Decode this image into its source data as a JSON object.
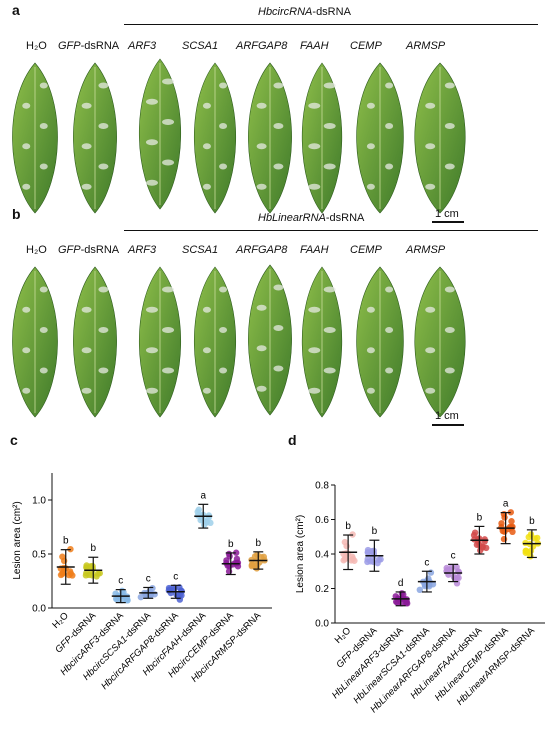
{
  "panel_a": {
    "letter": "a",
    "group_label_italic": "HbcircRNA",
    "group_label_suffix": "-dsRNA",
    "labels": [
      {
        "text": "H₂O",
        "italic": false
      },
      {
        "text": "GFP",
        "italic": true,
        "suffix": "-dsRNA"
      },
      {
        "text": "ARF3",
        "italic": true
      },
      {
        "text": "SCSA1",
        "italic": true
      },
      {
        "text": "ARFGAP8",
        "italic": true
      },
      {
        "text": "FAAH",
        "italic": true
      },
      {
        "text": "CEMP",
        "italic": true
      },
      {
        "text": "ARMSP",
        "italic": true
      }
    ],
    "scale_bar": "1 cm"
  },
  "panel_b": {
    "letter": "b",
    "group_label_italic": "HbLinearRNA",
    "group_label_suffix": "-dsRNA",
    "labels": [
      {
        "text": "H₂O",
        "italic": false
      },
      {
        "text": "GFP",
        "italic": true,
        "suffix": "-dsRNA"
      },
      {
        "text": "ARF3",
        "italic": true
      },
      {
        "text": "SCSA1",
        "italic": true
      },
      {
        "text": "ARFGAP8",
        "italic": true
      },
      {
        "text": "FAAH",
        "italic": true
      },
      {
        "text": "CEMP",
        "italic": true
      },
      {
        "text": "ARMSP",
        "italic": true
      }
    ],
    "scale_bar": "1 cm"
  },
  "colors": {
    "leaf_dark": "#3f7a2a",
    "leaf_light": "#8fbf4a",
    "lesion": "#e6e9e2"
  },
  "chart_data": [
    {
      "panel": "c",
      "type": "scatter",
      "ylabel": "Lesion area (cm²)",
      "ylim": [
        0,
        1.25
      ],
      "yticks": [
        0.0,
        0.5,
        1.0
      ],
      "categories": [
        "H₂O",
        "GFP-dsRNA",
        "HbcircARF3-dsRNA",
        "HbcircSCSA1-dsRNA",
        "HbcircARFGAP8-dsRNA",
        "HbcircFAAH-dsRNA",
        "HbcircCEMP-dsRNA",
        "HbcircARMSP-dsRNA"
      ],
      "italic_parts": [
        "",
        "GFP",
        "HbcircARF3",
        "HbcircSCSA1",
        "HbcircARFGAP8",
        "HbcircFAAH",
        "HbcircCEMP",
        "HbcircARMSP"
      ],
      "means": [
        0.38,
        0.35,
        0.11,
        0.14,
        0.15,
        0.85,
        0.41,
        0.44
      ],
      "sd": [
        0.16,
        0.12,
        0.06,
        0.05,
        0.06,
        0.11,
        0.1,
        0.08
      ],
      "letters": [
        "b",
        "b",
        "c",
        "c",
        "c",
        "a",
        "b",
        "b"
      ],
      "colors": [
        "#f07e1a",
        "#c8c81e",
        "#86b8e6",
        "#8aa6e0",
        "#4c62d2",
        "#9fd0ea",
        "#8a1a96",
        "#e0a040"
      ],
      "grid": false
    },
    {
      "panel": "d",
      "type": "scatter",
      "ylabel": "Lesion area (cm²)",
      "ylim": [
        0,
        0.8
      ],
      "yticks": [
        0.0,
        0.2,
        0.4,
        0.6,
        0.8
      ],
      "categories": [
        "H₂O",
        "GFP-dsRNA",
        "HbLinearARF3-dsRNA",
        "HbLinearSCSA1-dsRNA",
        "HbLinearARFGAP8-dsRNA",
        "HbLinearFAAH-dsRNA",
        "HbLinearCEMP-dsRNA",
        "HbLinearARMSP-dsRNA"
      ],
      "italic_parts": [
        "",
        "GFP",
        "HbLinearARF3",
        "HbLinearSCSA1",
        "HbLinearARFGAP8",
        "HbLinearFAAH",
        "HbLinearCEMP",
        "HbLinearARMSP"
      ],
      "means": [
        0.41,
        0.39,
        0.14,
        0.24,
        0.29,
        0.48,
        0.55,
        0.46
      ],
      "sd": [
        0.1,
        0.09,
        0.04,
        0.06,
        0.05,
        0.08,
        0.09,
        0.08
      ],
      "letters": [
        "b",
        "b",
        "d",
        "c",
        "c",
        "b",
        "a",
        "b"
      ],
      "colors": [
        "#f4b8b4",
        "#9c9ce6",
        "#8a1a96",
        "#8aa6e0",
        "#b88ad8",
        "#d24a4a",
        "#e85a10",
        "#f2e010"
      ],
      "grid": false
    }
  ]
}
